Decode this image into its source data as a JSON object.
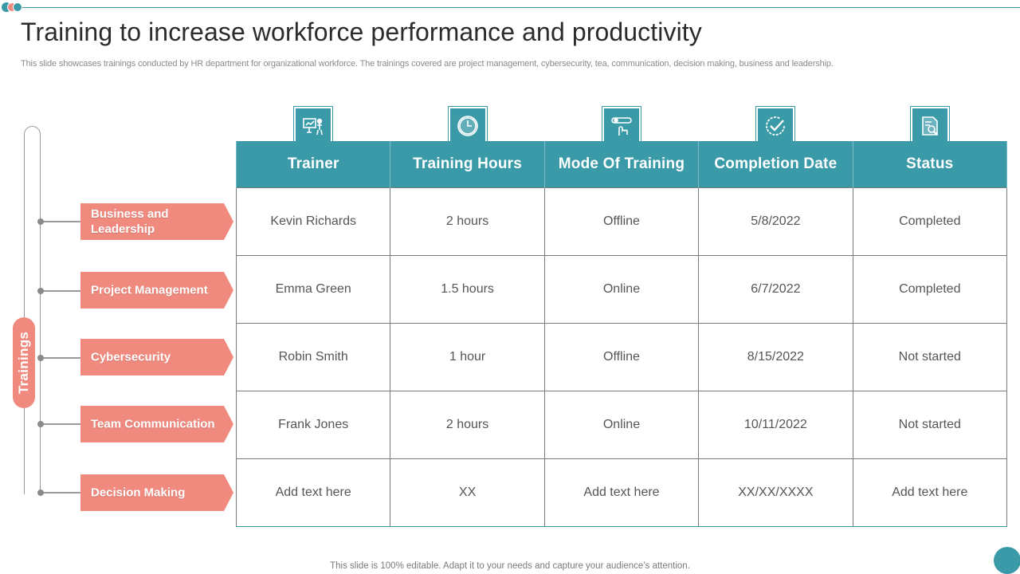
{
  "slide": {
    "title": "Training to increase workforce performance and productivity",
    "subtitle": "This slide showcases trainings conducted by HR department for organizational workforce. The trainings covered are project management, cybersecurity, tea,  communication, decision making, business and leadership.",
    "footer": "This slide is 100% editable. Adapt it to your needs and capture your audience’s attention."
  },
  "sidebar": {
    "label": "Trainings",
    "items": [
      {
        "label": "Business and Leadership"
      },
      {
        "label": "Project Management"
      },
      {
        "label": "Cybersecurity"
      },
      {
        "label": "Team Communication"
      },
      {
        "label": "Decision Making"
      }
    ]
  },
  "table": {
    "headers": [
      {
        "label": "Trainer",
        "icon": "presentation-icon"
      },
      {
        "label": "Training Hours",
        "icon": "clock-icon"
      },
      {
        "label": "Mode Of Training",
        "icon": "pointer-icon"
      },
      {
        "label": "Completion Date",
        "icon": "checkmark-icon"
      },
      {
        "label": "Status",
        "icon": "document-search-icon"
      }
    ],
    "rows": [
      [
        "Kevin Richards",
        "2 hours",
        "Offline",
        "5/8/2022",
        "Completed"
      ],
      [
        "Emma Green",
        "1.5 hours",
        "Online",
        "6/7/2022",
        "Completed"
      ],
      [
        "Robin Smith",
        "1 hour",
        "Offline",
        "8/15/2022",
        "Not started"
      ],
      [
        "Frank Jones",
        "2 hours",
        "Online",
        "10/11/2022",
        "Not started"
      ],
      [
        "Add text here",
        "XX",
        "Add text here",
        "XX/XX/XXXX",
        "Add text here"
      ]
    ]
  },
  "colors": {
    "teal": "#3a9aa8",
    "coral": "#f08a7e"
  }
}
